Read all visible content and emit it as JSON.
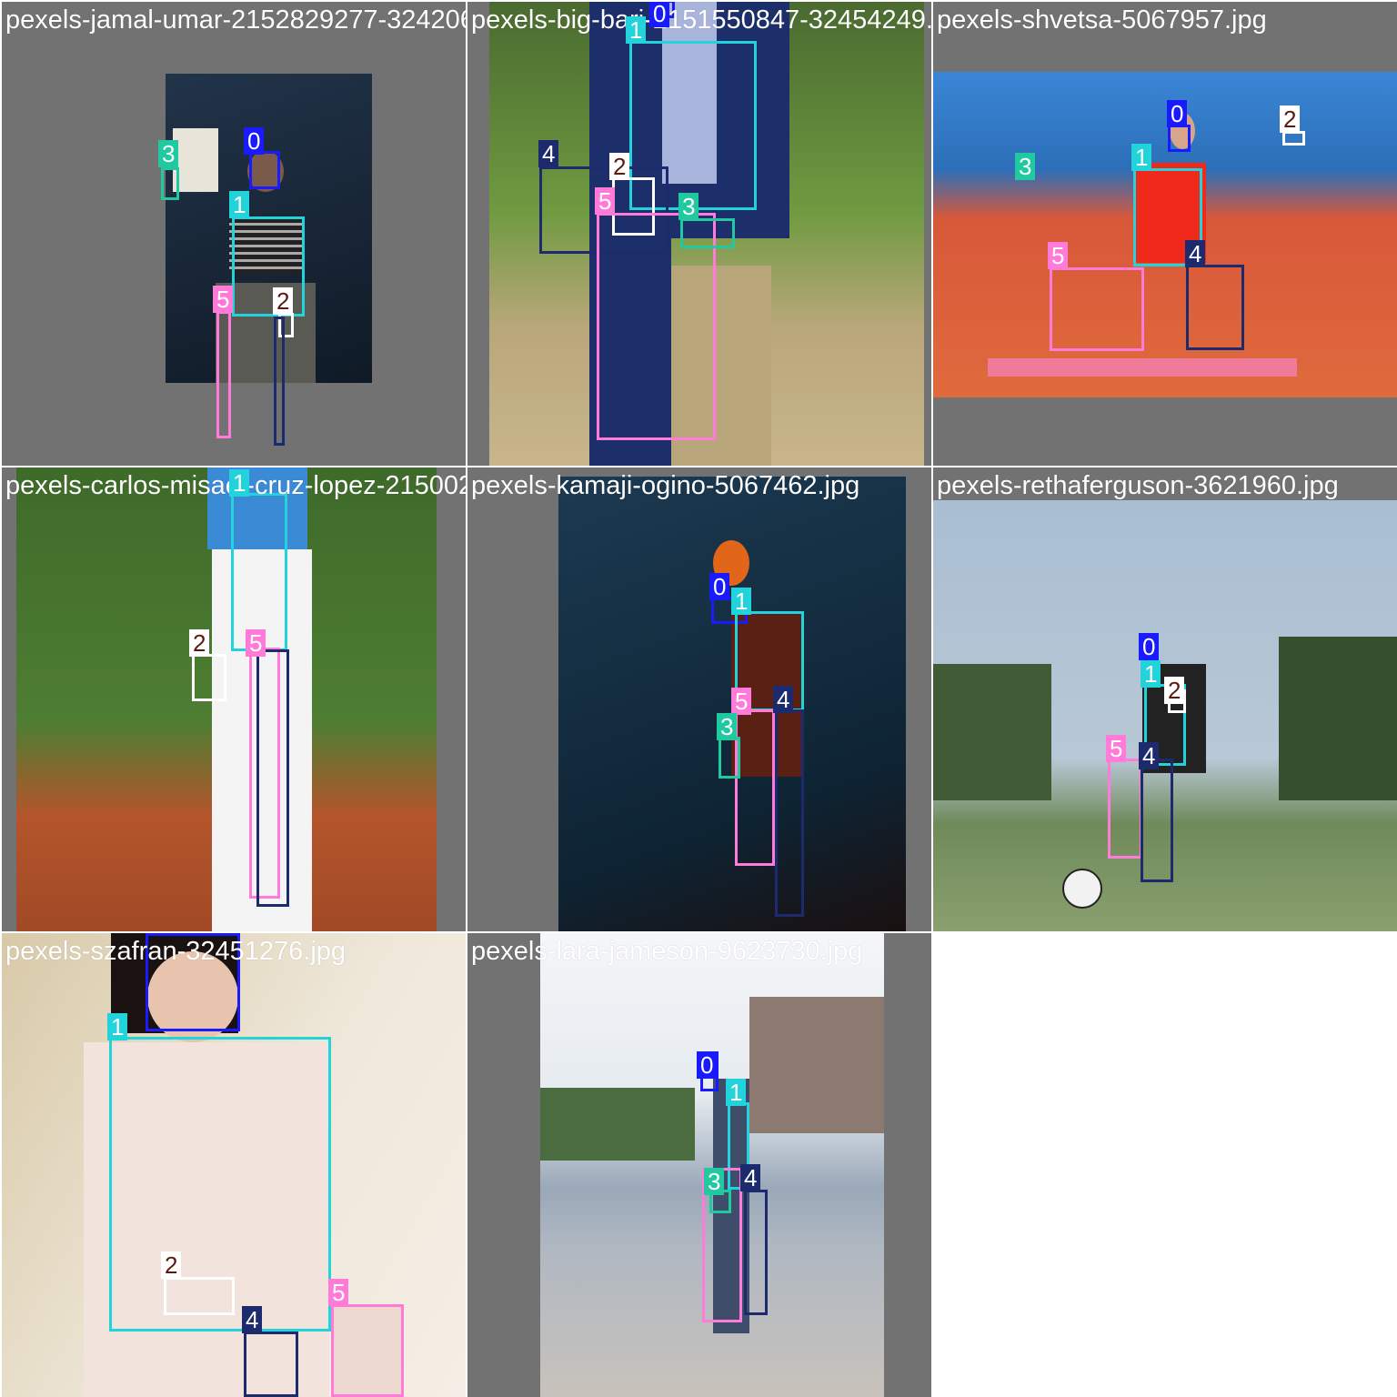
{
  "grid": {
    "tiles": [
      {
        "filename": "pexels-jamal-umar-2152829277-32420639.jpg"
      },
      {
        "filename": "pexels-big-bari-2151550847-32454249.jpg"
      },
      {
        "filename": "pexels-shvetsa-5067957.jpg"
      },
      {
        "filename": "pexels-carlos-misael-cruz-lopez-21500271"
      },
      {
        "filename": "pexels-kamaji-ogino-5067462.jpg"
      },
      {
        "filename": "pexels-rethaferguson-3621960.jpg"
      },
      {
        "filename": "pexels-szafran-32451276.jpg"
      },
      {
        "filename": "pexels-lara-jameson-9623730.jpg"
      }
    ]
  },
  "labels": {
    "c0": "0",
    "c1": "1",
    "c2": "2",
    "c3": "3",
    "c4": "4",
    "c5": "5"
  },
  "colors": {
    "class0": "#1a1aff",
    "class1": "#22d3dc",
    "class2": "#ffffff",
    "class3": "#20c9a0",
    "class4": "#1e2a6e",
    "class5": "#ff7ad9"
  }
}
